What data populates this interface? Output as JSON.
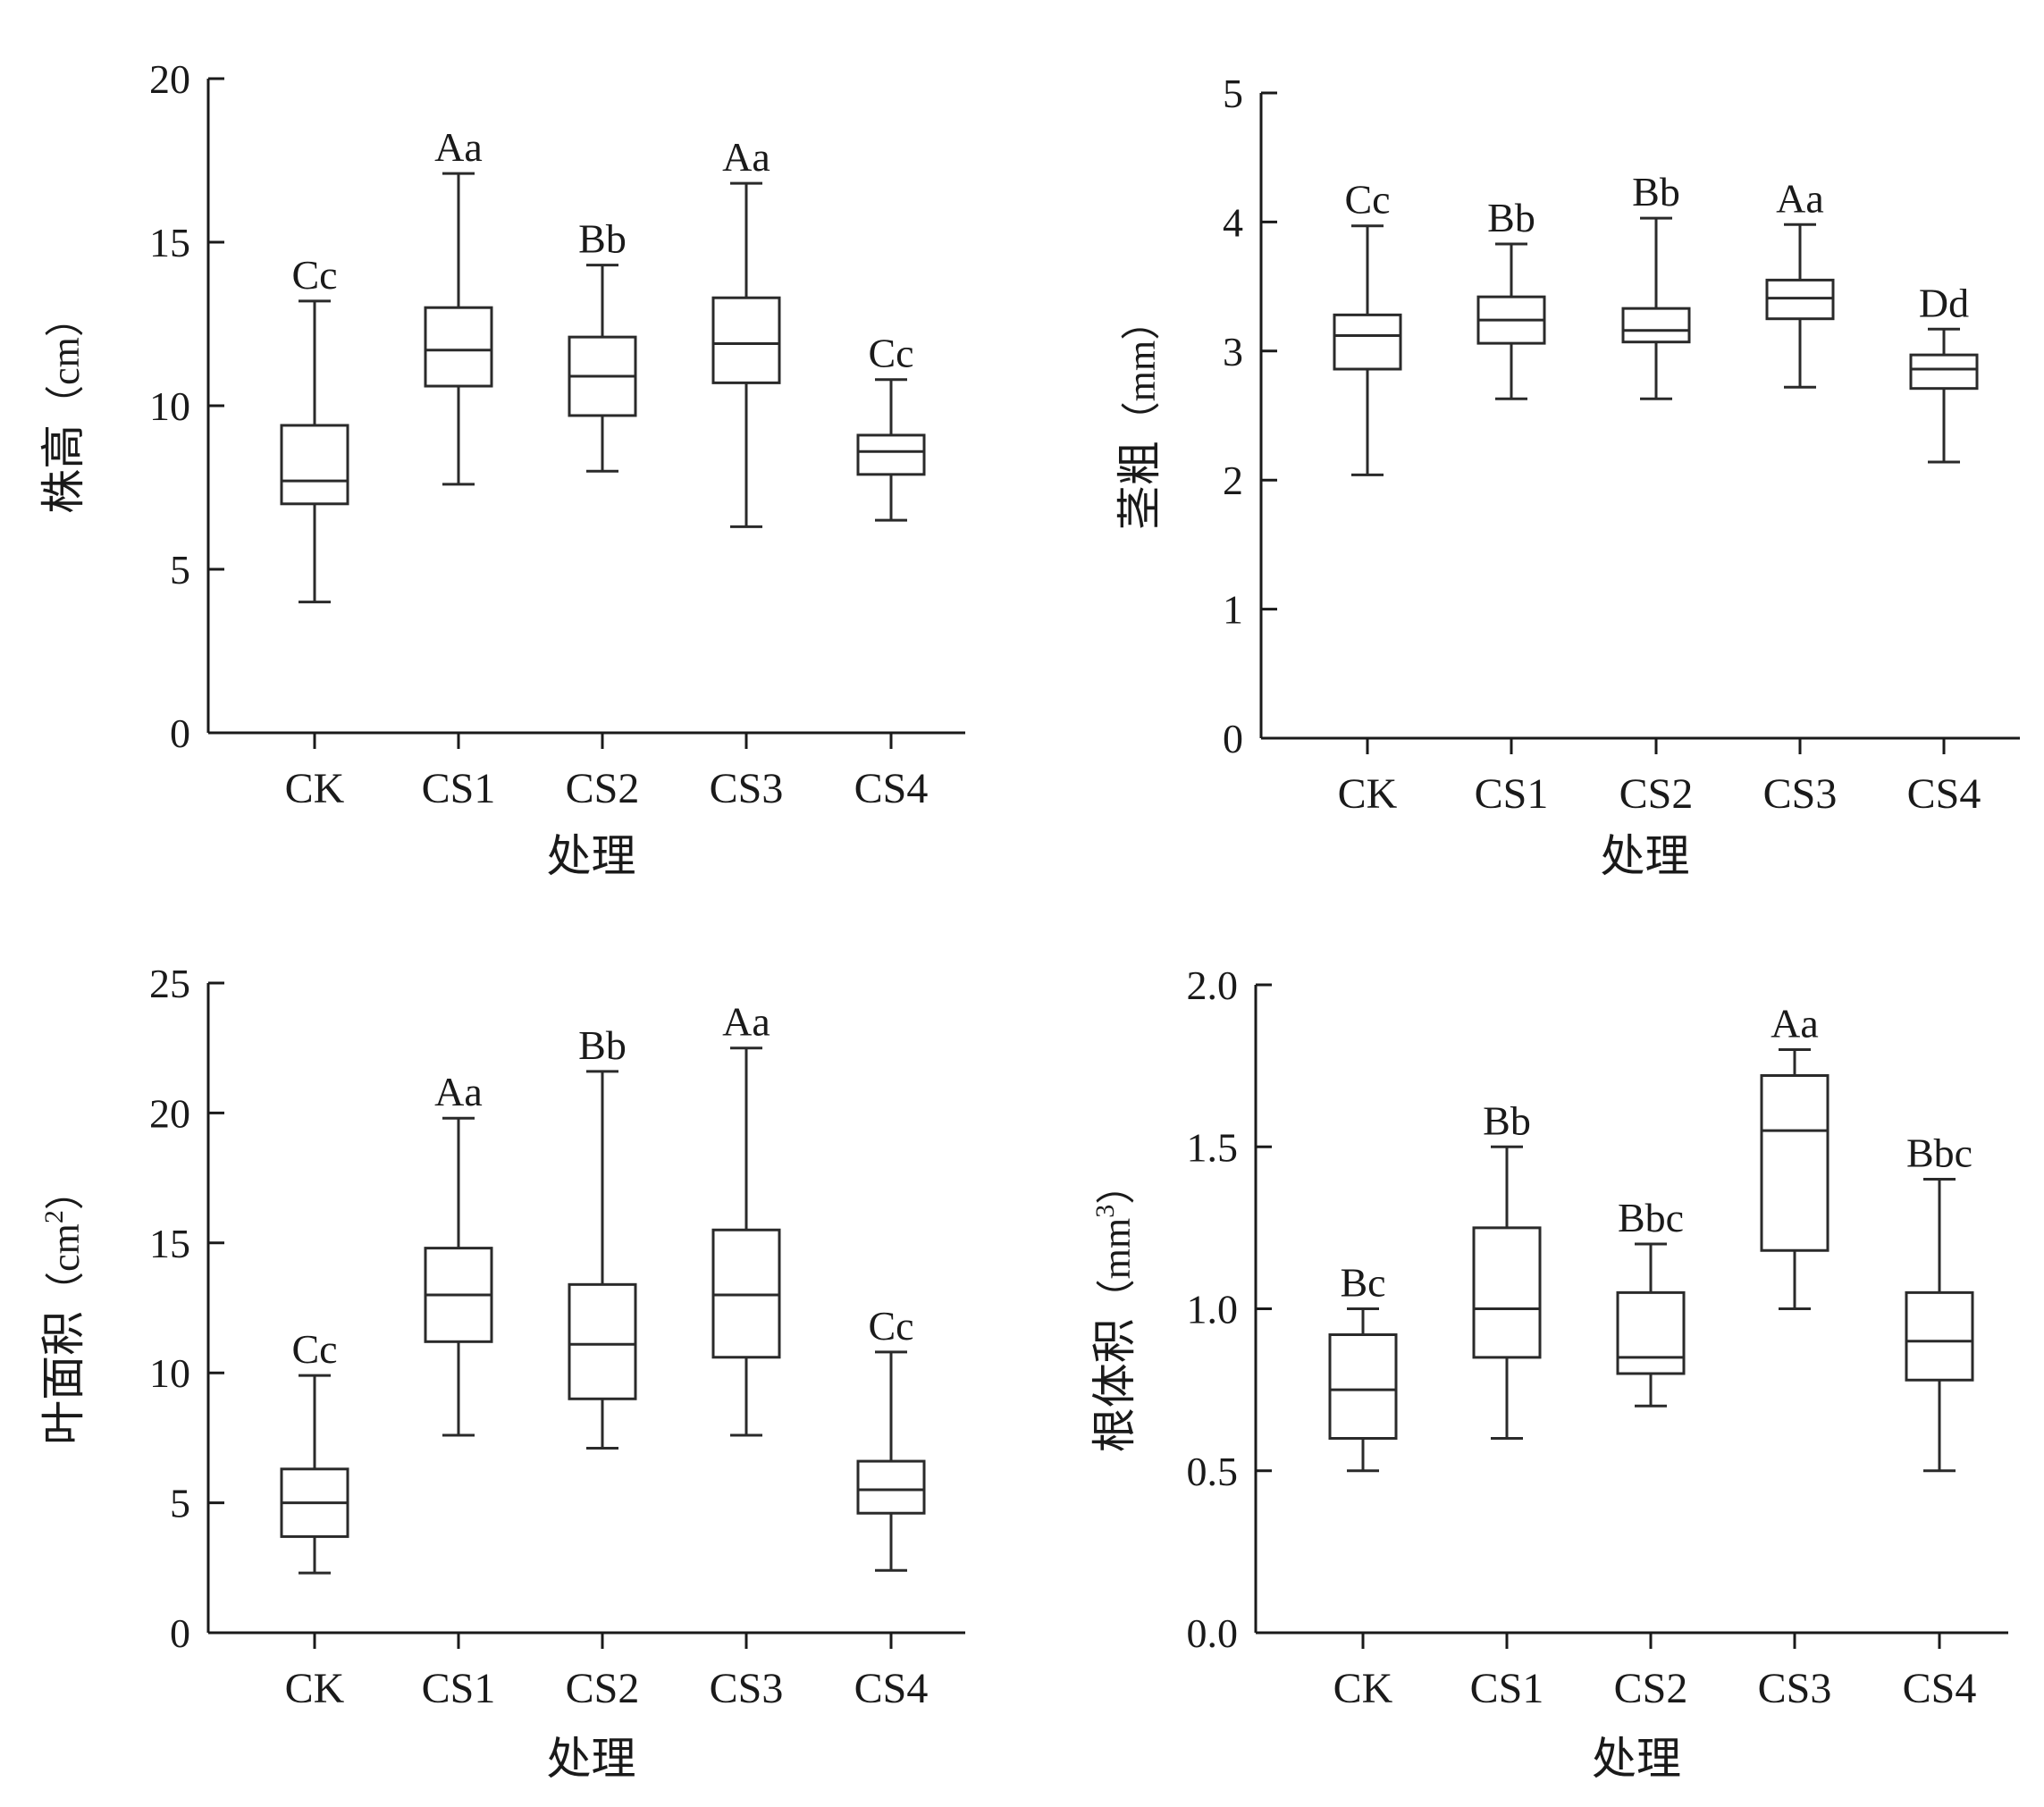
{
  "chart_data": [
    {
      "type": "box",
      "xlabel": "处理",
      "ylabel": "株高（cm）",
      "ylabel_main": "株高",
      "ylabel_unit": "（cm）",
      "ylabel_sup": "",
      "ylim": [
        0,
        20
      ],
      "yticks": [
        "0",
        "5",
        "10",
        "15",
        "20"
      ],
      "ytick_values": [
        0,
        5,
        10,
        15,
        20
      ],
      "categories": [
        "CK",
        "CS1",
        "CS2",
        "CS3",
        "CS4"
      ],
      "boxes": [
        {
          "min": 4.0,
          "q1": 7.0,
          "median": 7.7,
          "q3": 9.4,
          "max": 13.2,
          "label": "Cc"
        },
        {
          "min": 7.6,
          "q1": 10.6,
          "median": 11.7,
          "q3": 13.0,
          "max": 17.1,
          "label": "Aa"
        },
        {
          "min": 8.0,
          "q1": 9.7,
          "median": 10.9,
          "q3": 12.1,
          "max": 14.3,
          "label": "Bb"
        },
        {
          "min": 6.3,
          "q1": 10.7,
          "median": 11.9,
          "q3": 13.3,
          "max": 16.8,
          "label": "Aa"
        },
        {
          "min": 6.5,
          "q1": 7.9,
          "median": 8.6,
          "q3": 9.1,
          "max": 10.8,
          "label": "Cc"
        }
      ]
    },
    {
      "type": "box",
      "xlabel": "处理",
      "ylabel": "茎粗（mm）",
      "ylabel_main": "茎粗",
      "ylabel_unit": "（mm）",
      "ylabel_sup": "",
      "ylim": [
        0,
        5
      ],
      "yticks": [
        "0",
        "1",
        "2",
        "3",
        "4",
        "5"
      ],
      "ytick_values": [
        0,
        1,
        2,
        3,
        4,
        5
      ],
      "categories": [
        "CK",
        "CS1",
        "CS2",
        "CS3",
        "CS4"
      ],
      "boxes": [
        {
          "min": 2.04,
          "q1": 2.86,
          "median": 3.12,
          "q3": 3.28,
          "max": 3.97,
          "label": "Cc"
        },
        {
          "min": 2.63,
          "q1": 3.06,
          "median": 3.24,
          "q3": 3.42,
          "max": 3.83,
          "label": "Bb"
        },
        {
          "min": 2.63,
          "q1": 3.07,
          "median": 3.16,
          "q3": 3.33,
          "max": 4.03,
          "label": "Bb"
        },
        {
          "min": 2.72,
          "q1": 3.25,
          "median": 3.41,
          "q3": 3.55,
          "max": 3.98,
          "label": "Aa"
        },
        {
          "min": 2.14,
          "q1": 2.71,
          "median": 2.86,
          "q3": 2.97,
          "max": 3.17,
          "label": "Dd"
        }
      ]
    },
    {
      "type": "box",
      "xlabel": "处理",
      "ylabel": "叶面积（cm²）",
      "ylabel_main": "叶面积",
      "ylabel_unit": "（cm",
      "ylabel_sup": "2",
      "ylim": [
        0,
        25
      ],
      "yticks": [
        "0",
        "5",
        "10",
        "15",
        "20",
        "25"
      ],
      "ytick_values": [
        0,
        5,
        10,
        15,
        20,
        25
      ],
      "categories": [
        "CK",
        "CS1",
        "CS2",
        "CS3",
        "CS4"
      ],
      "boxes": [
        {
          "min": 2.3,
          "q1": 3.7,
          "median": 5.0,
          "q3": 6.3,
          "max": 9.9,
          "label": "Cc"
        },
        {
          "min": 7.6,
          "q1": 11.2,
          "median": 13.0,
          "q3": 14.8,
          "max": 19.8,
          "label": "Aa"
        },
        {
          "min": 7.1,
          "q1": 9.0,
          "median": 11.1,
          "q3": 13.4,
          "max": 21.6,
          "label": "Bb"
        },
        {
          "min": 7.6,
          "q1": 10.6,
          "median": 13.0,
          "q3": 15.5,
          "max": 22.5,
          "label": "Aa"
        },
        {
          "min": 2.4,
          "q1": 4.6,
          "median": 5.5,
          "q3": 6.6,
          "max": 10.8,
          "label": "Cc"
        }
      ]
    },
    {
      "type": "box",
      "xlabel": "处理",
      "ylabel": "根体积（mm³）",
      "ylabel_main": "根体积",
      "ylabel_unit": "（mm",
      "ylabel_sup": "3",
      "ylim": [
        0,
        2.0
      ],
      "yticks": [
        "0.0",
        "0.5",
        "1.0",
        "1.5",
        "2.0"
      ],
      "ytick_values": [
        0,
        0.5,
        1.0,
        1.5,
        2.0
      ],
      "categories": [
        "CK",
        "CS1",
        "CS2",
        "CS3",
        "CS4"
      ],
      "boxes": [
        {
          "min": 0.5,
          "q1": 0.6,
          "median": 0.75,
          "q3": 0.92,
          "max": 1.0,
          "label": "Bc"
        },
        {
          "min": 0.6,
          "q1": 0.85,
          "median": 1.0,
          "q3": 1.25,
          "max": 1.5,
          "label": "Bb"
        },
        {
          "min": 0.7,
          "q1": 0.8,
          "median": 0.85,
          "q3": 1.05,
          "max": 1.2,
          "label": "Bbc"
        },
        {
          "min": 1.0,
          "q1": 1.18,
          "median": 1.55,
          "q3": 1.72,
          "max": 1.8,
          "label": "Aa"
        },
        {
          "min": 0.5,
          "q1": 0.78,
          "median": 0.9,
          "q3": 1.05,
          "max": 1.4,
          "label": "Bbc"
        }
      ]
    }
  ]
}
